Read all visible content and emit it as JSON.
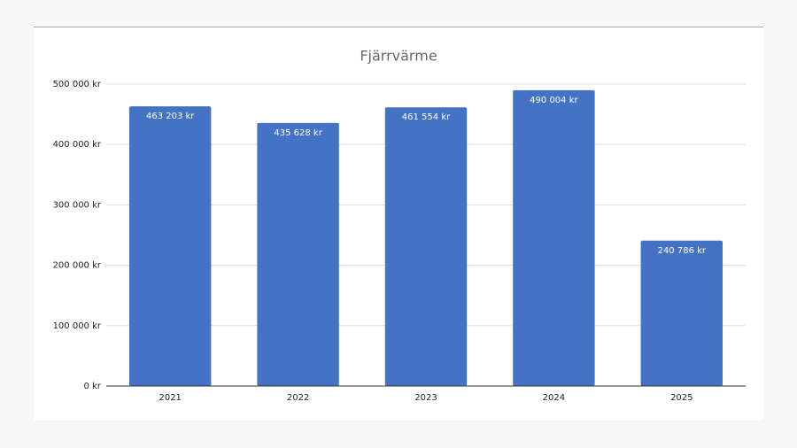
{
  "chart_data": {
    "type": "bar",
    "title": "Fjärrvärme",
    "categories": [
      "2021",
      "2022",
      "2023",
      "2024",
      "2025"
    ],
    "values": [
      463203,
      435628,
      461554,
      490004,
      240786
    ],
    "value_labels": [
      "463 203 kr",
      "435 628 kr",
      "461 554 kr",
      "490 004 kr",
      "240 786 kr"
    ],
    "color": "#4472c4",
    "ylim": [
      0,
      500000
    ],
    "yticks": [
      {
        "value": 0,
        "label": "0 kr"
      },
      {
        "value": 100000,
        "label": "100 000 kr"
      },
      {
        "value": 200000,
        "label": "200 000 kr"
      },
      {
        "value": 300000,
        "label": "300 000 kr"
      },
      {
        "value": 400000,
        "label": "400 000 kr"
      },
      {
        "value": 500000,
        "label": "500 000 kr"
      }
    ],
    "grid": true
  }
}
